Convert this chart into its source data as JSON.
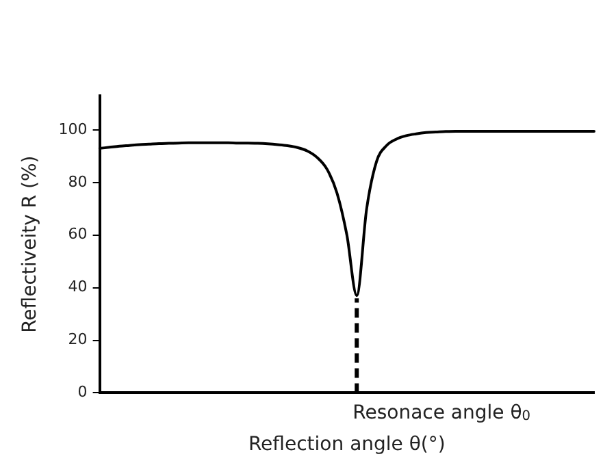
{
  "chart_data": {
    "type": "line",
    "xlabel": "Reflection angle θ(°)",
    "ylabel": "Reflectiveity R (%)",
    "categories": [
      null,
      null,
      null,
      null,
      null,
      null,
      null,
      null,
      null,
      null,
      null,
      null,
      null,
      null,
      null,
      null,
      null,
      null,
      null,
      null,
      null,
      null,
      null,
      null,
      null,
      null,
      null,
      null,
      null,
      null,
      null,
      null,
      null,
      null,
      null,
      null,
      null,
      null,
      null,
      null,
      null,
      null,
      null,
      null,
      null,
      null,
      null,
      null,
      null,
      null,
      null
    ],
    "series": [
      {
        "color": "#000000",
        "values": [
          93,
          93.4,
          93.8,
          94.1,
          94.4,
          94.6,
          94.8,
          94.9,
          95,
          95.1,
          95.1,
          95.1,
          95.1,
          95.1,
          95,
          95,
          94.9,
          94.7,
          94.4,
          94,
          93.3,
          92,
          89.5,
          85,
          76,
          60,
          37,
          70,
          88,
          94,
          96.5,
          97.8,
          98.5,
          99,
          99.2,
          99.4,
          99.5,
          99.5,
          99.5,
          99.5,
          99.5,
          99.5,
          99.5,
          99.5,
          99.5,
          99.5,
          99.5,
          99.5,
          99.5,
          99.5,
          99.5
        ]
      }
    ],
    "ylim": [
      0,
      113
    ],
    "yticks": [
      0,
      20,
      40,
      60,
      80,
      100
    ],
    "annotations": [
      "Resonace angle θ$_{0}$"
    ],
    "tick_labels": "y",
    "grid": false,
    "legend": false,
    "marker": "none",
    "line_style": "solid"
  }
}
